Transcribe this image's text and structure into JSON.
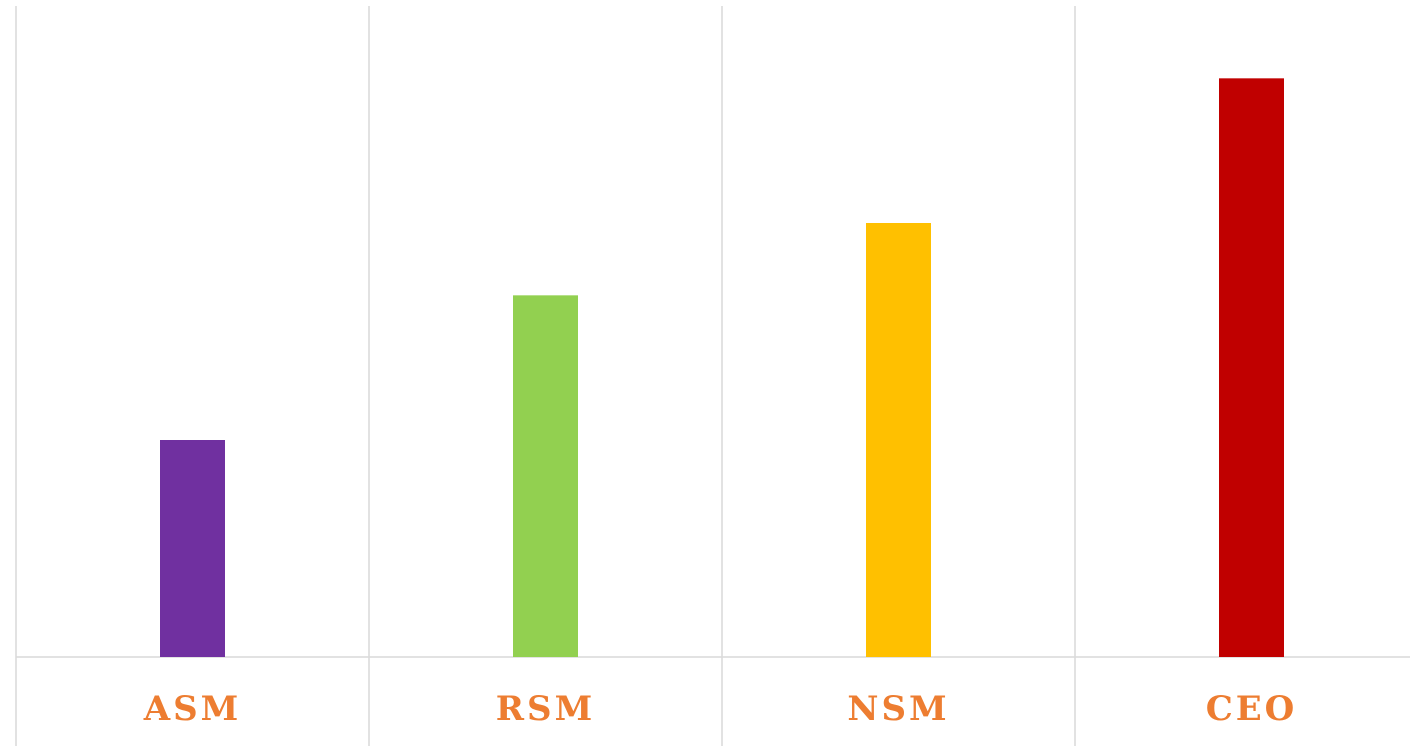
{
  "chart_data": {
    "type": "bar",
    "categories": [
      "ASM",
      "RSM",
      "NSM",
      "CEO"
    ],
    "values": [
      3,
      5,
      6,
      8
    ],
    "colors": [
      "#7030A0",
      "#92D050",
      "#FFC000",
      "#C00000"
    ],
    "ylim": [
      0,
      9
    ]
  }
}
